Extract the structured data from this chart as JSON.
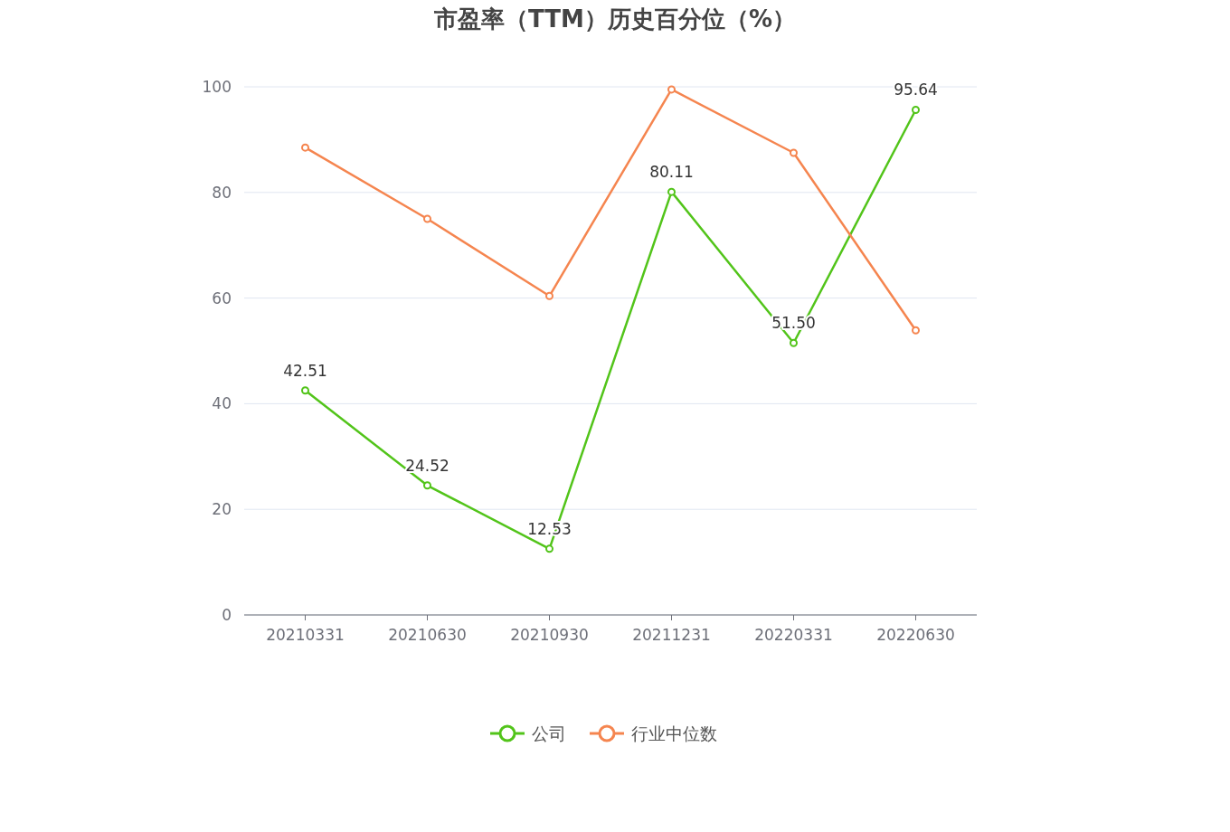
{
  "chart_data": {
    "type": "line",
    "title": "市盈率（TTM）历史百分位（%）",
    "categories": [
      "20210331",
      "20210630",
      "20210930",
      "20211231",
      "20220331",
      "20220630"
    ],
    "series": [
      {
        "name": "公司",
        "color": "#52c41a",
        "values": [
          42.51,
          24.52,
          12.53,
          80.11,
          51.5,
          95.64
        ],
        "value_labels": [
          "42.51",
          "24.52",
          "12.53",
          "80.11",
          "51.50",
          "95.64"
        ]
      },
      {
        "name": "行业中位数",
        "color": "#f5854f",
        "values": [
          88.5,
          75.0,
          60.4,
          99.5,
          87.5,
          53.9
        ]
      }
    ],
    "ylim": [
      0,
      100
    ],
    "yticks": [
      0,
      20,
      40,
      60,
      80,
      100
    ],
    "grid": "y",
    "legend": "bottom",
    "marker": "circle",
    "line_style": "solid"
  }
}
